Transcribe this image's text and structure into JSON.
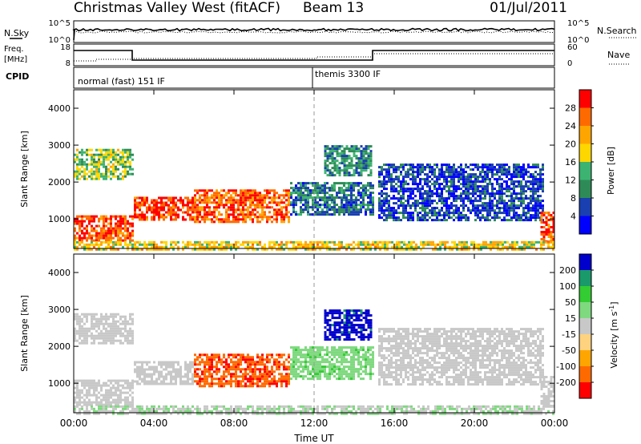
{
  "header": {
    "title": "Christmas Valley West (fitACF)",
    "beam": "Beam 13",
    "date": "01/Jul/2011"
  },
  "strips": {
    "nsky_label": "N.Sky",
    "nsearch_label": "N.Search",
    "nsky_ticks": [
      "10^5",
      "10^0"
    ],
    "nsearch_ticks": [
      "10^5",
      "10^0"
    ],
    "freq_label_line1": "Freq.",
    "freq_label_line2": "[MHz]",
    "freq_ticks": [
      "18",
      "8"
    ],
    "nave_label": "Nave",
    "nave_ticks": [
      "60",
      "0"
    ],
    "cpid_label": "CPID",
    "cpid_segments": [
      "normal (fast) 151 IF",
      "themis 3300 IF"
    ]
  },
  "colors": {
    "power": [
      "#0000ff",
      "#1a3fb0",
      "#2e8b57",
      "#3cb371",
      "#ffd700",
      "#ffa500",
      "#ff6a00",
      "#ff0000"
    ],
    "velocity": [
      "#0000cc",
      "#1a9a6a",
      "#33cc33",
      "#7fd97f",
      "#c8c8c8",
      "#ffd280",
      "#ffa500",
      "#ff6a00",
      "#ff0000"
    ],
    "ground_scatter": "#c8c8c8"
  },
  "chart_data": [
    {
      "type": "heatmap",
      "title": "",
      "panel": "power",
      "xlabel": "Time UT",
      "ylabel": "Slant Range [km]",
      "x_ticks": [
        "00:00",
        "04:00",
        "08:00",
        "12:00",
        "16:00",
        "20:00",
        "00:00"
      ],
      "y_ticks": [
        "1000",
        "2000",
        "3000",
        "4000"
      ],
      "xlim": [
        0,
        24
      ],
      "ylim": [
        200,
        4500
      ],
      "colorbar": {
        "label": "Power [dB]",
        "ticks": [
          "4",
          "8",
          "12",
          "16",
          "20",
          "24",
          "28"
        ],
        "range": [
          0,
          30
        ]
      },
      "regions": [
        {
          "t0": 0.0,
          "t1": 3.0,
          "r0": 400,
          "r1": 1100,
          "value": 26
        },
        {
          "t0": 0.0,
          "t1": 3.0,
          "r0": 2100,
          "r1": 2900,
          "value": 14
        },
        {
          "t0": 3.0,
          "t1": 6.0,
          "r0": 1000,
          "r1": 1600,
          "value": 27
        },
        {
          "t0": 6.0,
          "t1": 10.8,
          "r0": 900,
          "r1": 1800,
          "value": 25
        },
        {
          "t0": 10.8,
          "t1": 14.9,
          "r0": 1100,
          "r1": 2000,
          "value": 8
        },
        {
          "t0": 12.5,
          "t1": 14.9,
          "r0": 2200,
          "r1": 3000,
          "value": 10
        },
        {
          "t0": 15.2,
          "t1": 23.4,
          "r0": 1000,
          "r1": 2500,
          "value": 5
        },
        {
          "t0": 23.3,
          "t1": 24.0,
          "r0": 400,
          "r1": 1200,
          "value": 26
        },
        {
          "t0": 0.0,
          "t1": 24.0,
          "r0": 200,
          "r1": 400,
          "value": 18
        }
      ]
    },
    {
      "type": "heatmap",
      "title": "",
      "panel": "velocity",
      "xlabel": "Time UT",
      "ylabel": "Slant Range [km]",
      "x_ticks": [
        "00:00",
        "04:00",
        "08:00",
        "12:00",
        "16:00",
        "20:00",
        "00:00"
      ],
      "y_ticks": [
        "1000",
        "2000",
        "3000",
        "4000"
      ],
      "xlim": [
        0,
        24
      ],
      "ylim": [
        200,
        4500
      ],
      "colorbar": {
        "label": "Velocity [m s^-1]",
        "ticks": [
          "200",
          "100",
          "50",
          "15",
          "-15",
          "-50",
          "-100",
          "-200"
        ],
        "range": [
          -250,
          250
        ]
      },
      "regions": [
        {
          "t0": 0.0,
          "t1": 3.0,
          "r0": 400,
          "r1": 1100,
          "value": 0,
          "ground_scatter": true
        },
        {
          "t0": 0.0,
          "t1": 3.0,
          "r0": 2100,
          "r1": 2900,
          "value": 0,
          "ground_scatter": true
        },
        {
          "t0": 3.0,
          "t1": 6.0,
          "r0": 1000,
          "r1": 1600,
          "value": 0,
          "ground_scatter": true
        },
        {
          "t0": 6.0,
          "t1": 10.8,
          "r0": 900,
          "r1": 1800,
          "value": -180
        },
        {
          "t0": 10.8,
          "t1": 14.9,
          "r0": 1100,
          "r1": 2000,
          "value": 60
        },
        {
          "t0": 12.5,
          "t1": 14.9,
          "r0": 2200,
          "r1": 3000,
          "value": 220
        },
        {
          "t0": 15.2,
          "t1": 23.4,
          "r0": 1000,
          "r1": 2500,
          "value": 0,
          "ground_scatter": true
        },
        {
          "t0": 23.3,
          "t1": 24.0,
          "r0": 400,
          "r1": 1200,
          "value": 0,
          "ground_scatter": true
        },
        {
          "t0": 0.0,
          "t1": 24.0,
          "r0": 200,
          "r1": 400,
          "value": 20
        }
      ]
    }
  ]
}
